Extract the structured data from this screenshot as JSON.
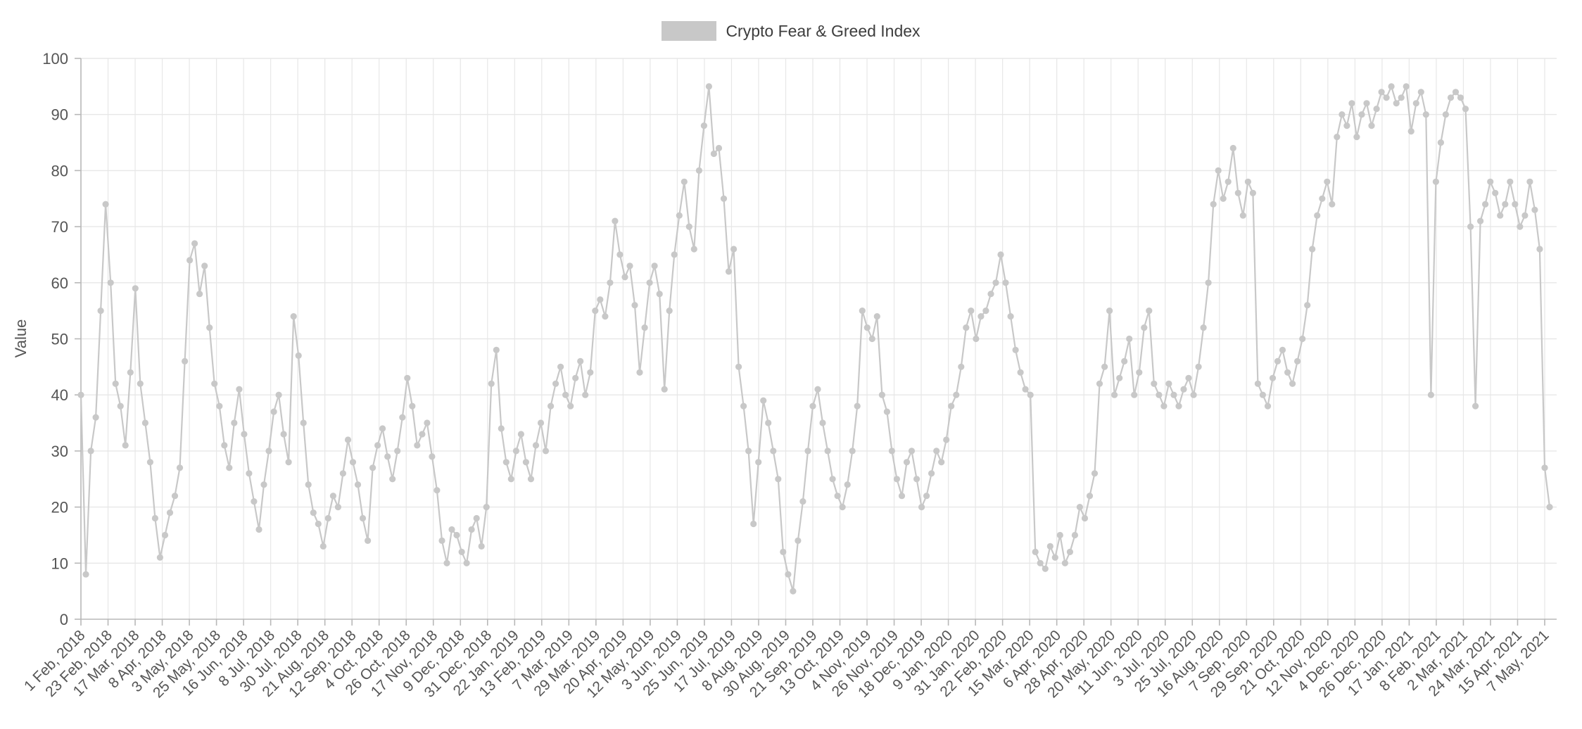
{
  "chart_data": {
    "type": "line",
    "marker": "circle",
    "title": "Crypto Fear & Greed Index",
    "ylabel": "Value",
    "xlabel": "",
    "ylim": [
      0,
      100
    ],
    "y_ticks": [
      0,
      10,
      20,
      30,
      40,
      50,
      60,
      70,
      80,
      90,
      100
    ],
    "series_color": "#c8c8c8",
    "grid_color": "#e7e7e7",
    "axis_color": "#b8b8b8",
    "legend_position": "top-center",
    "grid": "on",
    "x_tick_labels": [
      "1 Feb, 2018",
      "23 Feb, 2018",
      "17 Mar, 2018",
      "8 Apr, 2018",
      "3 May, 2018",
      "25 May, 2018",
      "16 Jun, 2018",
      "8 Jul, 2018",
      "30 Jul, 2018",
      "21 Aug, 2018",
      "12 Sep, 2018",
      "4 Oct, 2018",
      "26 Oct, 2018",
      "17 Nov, 2018",
      "9 Dec, 2018",
      "31 Dec, 2018",
      "22 Jan, 2019",
      "13 Feb, 2019",
      "7 Mar, 2019",
      "29 Mar, 2019",
      "20 Apr, 2019",
      "12 May, 2019",
      "3 Jun, 2019",
      "25 Jun, 2019",
      "17 Jul, 2019",
      "8 Aug, 2019",
      "30 Aug, 2019",
      "21 Sep, 2019",
      "13 Oct, 2019",
      "4 Nov, 2019",
      "26 Nov, 2019",
      "18 Dec, 2019",
      "9 Jan, 2020",
      "31 Jan, 2020",
      "22 Feb, 2020",
      "15 Mar, 2020",
      "6 Apr, 2020",
      "28 Apr, 2020",
      "20 May, 2020",
      "11 Jun, 2020",
      "3 Jul, 2020",
      "25 Jul, 2020",
      "16 Aug, 2020",
      "7 Sep, 2020",
      "29 Sep, 2020",
      "21 Oct, 2020",
      "12 Nov, 2020",
      "4 Dec, 2020",
      "26 Dec, 2020",
      "17 Jan, 2021",
      "8 Feb, 2021",
      "2 Mar, 2021",
      "24 Mar, 2021",
      "15 Apr, 2021",
      "7 May, 2021"
    ],
    "x_tick_interval_days": 22,
    "sample_interval_days": 4,
    "values_note": "Index values 0-100 sampled approximately every 4 days from 1 Feb 2018 to 7 May 2021, read from the plot",
    "values": [
      40,
      8,
      30,
      36,
      55,
      74,
      60,
      42,
      38,
      31,
      44,
      59,
      42,
      35,
      28,
      18,
      11,
      15,
      19,
      22,
      27,
      46,
      64,
      67,
      58,
      63,
      52,
      42,
      38,
      31,
      27,
      35,
      41,
      33,
      26,
      21,
      16,
      24,
      30,
      37,
      40,
      33,
      28,
      54,
      47,
      35,
      24,
      19,
      17,
      13,
      18,
      22,
      20,
      26,
      32,
      28,
      24,
      18,
      14,
      27,
      31,
      34,
      29,
      25,
      30,
      36,
      43,
      38,
      31,
      33,
      35,
      29,
      23,
      14,
      10,
      16,
      15,
      12,
      10,
      16,
      18,
      13,
      20,
      42,
      48,
      34,
      28,
      25,
      30,
      33,
      28,
      25,
      31,
      35,
      30,
      38,
      42,
      45,
      40,
      38,
      43,
      46,
      40,
      44,
      55,
      57,
      54,
      60,
      71,
      65,
      61,
      63,
      56,
      44,
      52,
      60,
      63,
      58,
      41,
      55,
      65,
      72,
      78,
      70,
      66,
      80,
      88,
      95,
      83,
      84,
      75,
      62,
      66,
      45,
      38,
      30,
      17,
      28,
      39,
      35,
      30,
      25,
      12,
      8,
      5,
      14,
      21,
      30,
      38,
      41,
      35,
      30,
      25,
      22,
      20,
      24,
      30,
      38,
      55,
      52,
      50,
      54,
      40,
      37,
      30,
      25,
      22,
      28,
      30,
      25,
      20,
      22,
      26,
      30,
      28,
      32,
      38,
      40,
      45,
      52,
      55,
      50,
      54,
      55,
      58,
      60,
      65,
      60,
      54,
      48,
      44,
      41,
      40,
      12,
      10,
      9,
      13,
      11,
      15,
      10,
      12,
      15,
      20,
      18,
      22,
      26,
      42,
      45,
      55,
      40,
      43,
      46,
      50,
      40,
      44,
      52,
      55,
      42,
      40,
      38,
      42,
      40,
      38,
      41,
      43,
      40,
      45,
      52,
      60,
      74,
      80,
      75,
      78,
      84,
      76,
      72,
      78,
      76,
      42,
      40,
      38,
      43,
      46,
      48,
      44,
      42,
      46,
      50,
      56,
      66,
      72,
      75,
      78,
      74,
      86,
      90,
      88,
      92,
      86,
      90,
      92,
      88,
      91,
      94,
      93,
      95,
      92,
      93,
      95,
      87,
      92,
      94,
      90,
      40,
      78,
      85,
      90,
      93,
      94,
      93,
      91,
      70,
      38,
      71,
      74,
      78,
      76,
      72,
      74,
      78,
      74,
      70,
      72,
      78,
      73,
      66,
      27,
      20
    ]
  }
}
